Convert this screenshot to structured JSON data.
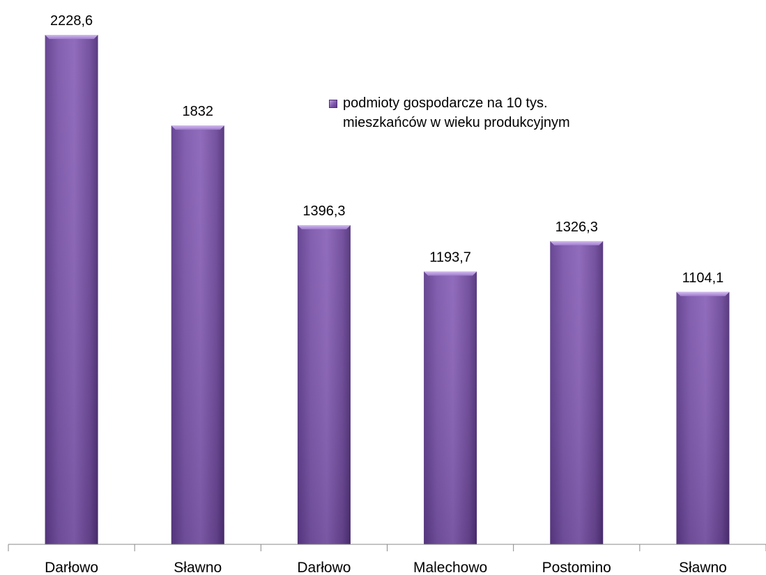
{
  "chart_data": {
    "type": "bar",
    "categories": [
      "Darłowo",
      "Sławno",
      "Darłowo",
      "Malechowo",
      "Postomino",
      "Sławno"
    ],
    "series": [
      {
        "name": "podmioty gospodarcze na 10 tys. mieszkańców w wieku produkcyjnym",
        "values": [
          2228.6,
          1832,
          1396.3,
          1193.7,
          1326.3,
          1104.1
        ]
      }
    ],
    "value_labels": [
      "2228,6",
      "1832",
      "1396,3",
      "1193,7",
      "1326,3",
      "1104,1"
    ],
    "title": "",
    "xlabel": "",
    "ylabel": "",
    "ylim": [
      0,
      2228.6
    ],
    "grid": false,
    "legend_position": "top-right"
  },
  "colors": {
    "bar_light": "#9a74c8",
    "bar_mid": "#7d56ab",
    "bar_dark": "#5a3786",
    "bar_top": "#c3a6e6",
    "axis": "#888888"
  }
}
